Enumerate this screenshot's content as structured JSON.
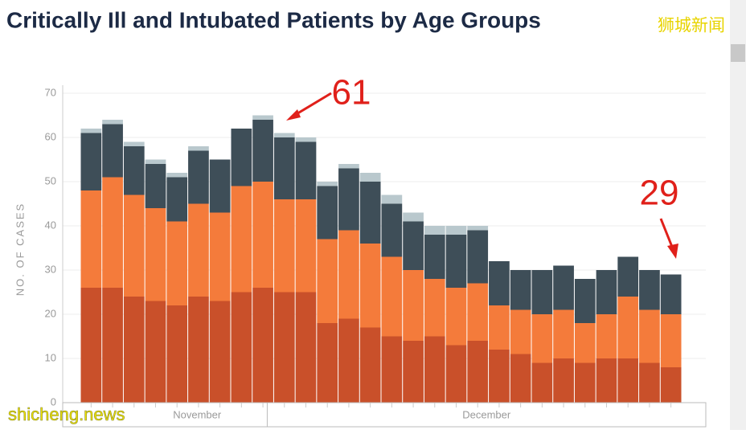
{
  "chart_data": {
    "type": "stacked_bar",
    "title": "Critically Ill and Intubated Patients by Age Groups",
    "y_label": "NO. OF CASES",
    "categories": [
      null,
      null,
      null,
      null,
      null,
      null,
      null,
      null,
      null,
      null,
      null,
      null,
      null,
      null,
      null,
      null,
      null,
      null,
      null,
      null,
      null,
      null,
      null,
      null,
      null,
      null,
      null,
      null
    ],
    "x_groups": [
      "November",
      "December"
    ],
    "series": [
      {
        "color": "#c9502a",
        "values": [
          26,
          26,
          24,
          23,
          22,
          24,
          23,
          25,
          26,
          25,
          25,
          18,
          19,
          17,
          15,
          14,
          15,
          13,
          14,
          12,
          11,
          9,
          10,
          9,
          10,
          10,
          9,
          8
        ]
      },
      {
        "color": "#f47b3b",
        "values": [
          22,
          25,
          23,
          21,
          19,
          21,
          20,
          24,
          24,
          21,
          21,
          19,
          20,
          19,
          18,
          16,
          13,
          13,
          13,
          10,
          10,
          11,
          11,
          9,
          10,
          14,
          12,
          12
        ]
      },
      {
        "color": "#3e4e58",
        "values": [
          13,
          12,
          11,
          10,
          10,
          12,
          12,
          13,
          14,
          14,
          13,
          12,
          14,
          14,
          12,
          11,
          10,
          12,
          12,
          10,
          9,
          10,
          10,
          10,
          10,
          9,
          9,
          9
        ]
      },
      {
        "color": "#b9c8cd",
        "values": [
          1,
          1,
          1,
          1,
          1,
          1,
          0,
          0,
          1,
          1,
          1,
          1,
          1,
          2,
          2,
          2,
          2,
          2,
          1,
          0,
          0,
          0,
          0,
          0,
          0,
          0,
          0,
          0
        ]
      }
    ],
    "ylim": [
      0,
      70
    ],
    "yticks": [
      0,
      10,
      20,
      30,
      40,
      50,
      60,
      70
    ],
    "grid": true,
    "annotations": [
      "61",
      "29"
    ]
  },
  "watermarks": [
    "狮城新闻",
    "shicheng.news"
  ]
}
